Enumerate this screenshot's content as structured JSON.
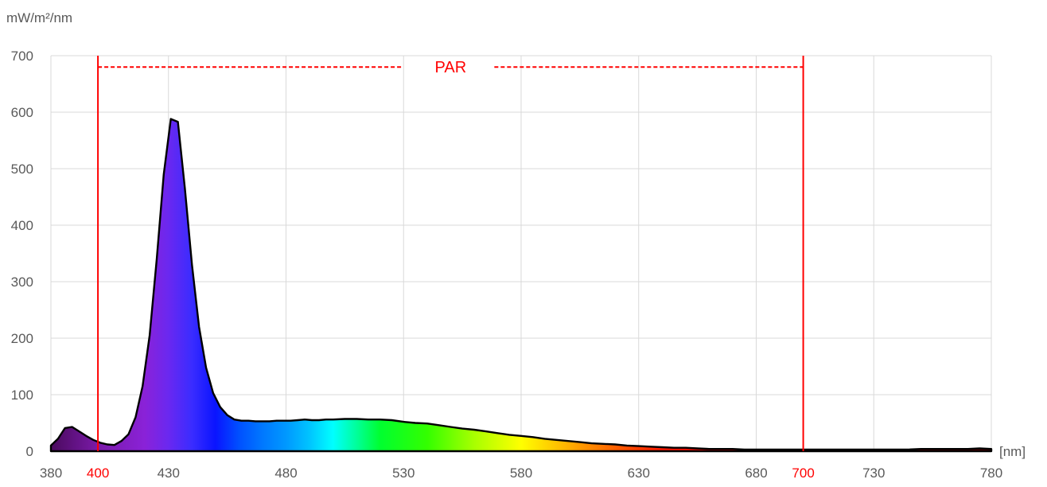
{
  "chart_data": {
    "type": "area",
    "ylabel": "mW/m²/nm",
    "xlabel": "[nm]",
    "xlim": [
      380,
      780
    ],
    "ylim": [
      0,
      700
    ],
    "y_ticks": [
      0,
      100,
      200,
      300,
      400,
      500,
      600,
      700
    ],
    "x_ticks": [
      380,
      400,
      430,
      480,
      530,
      580,
      630,
      680,
      700,
      730,
      780
    ],
    "highlight_ticks": [
      400,
      700
    ],
    "grid": true,
    "fill": "visible-spectrum-gradient",
    "series": [
      {
        "x": [
          380,
          383,
          386,
          389,
          392,
          395,
          398,
          401,
          404,
          407,
          410,
          413,
          416,
          419,
          422,
          425,
          428,
          431,
          434,
          437,
          440,
          443,
          446,
          449,
          452,
          455,
          458,
          461,
          464,
          467,
          470,
          473,
          476,
          479,
          482,
          485,
          488,
          491,
          494,
          497,
          500,
          505,
          510,
          515,
          520,
          525,
          530,
          535,
          540,
          545,
          550,
          555,
          560,
          565,
          570,
          575,
          580,
          585,
          590,
          595,
          600,
          605,
          610,
          615,
          620,
          625,
          630,
          635,
          640,
          645,
          650,
          655,
          660,
          665,
          670,
          675,
          680,
          685,
          690,
          695,
          700,
          705,
          710,
          715,
          720,
          725,
          730,
          735,
          740,
          745,
          750,
          755,
          760,
          765,
          770,
          775,
          780
        ],
        "y": [
          10,
          22,
          41,
          43,
          35,
          27,
          20,
          15,
          12,
          11,
          18,
          30,
          60,
          115,
          205,
          340,
          490,
          588,
          583,
          465,
          330,
          220,
          148,
          103,
          78,
          64,
          56,
          54,
          54,
          53,
          53,
          53,
          54,
          54,
          54,
          55,
          56,
          55,
          55,
          56,
          56,
          57,
          57,
          56,
          56,
          55,
          52,
          50,
          49,
          46,
          43,
          40,
          38,
          35,
          32,
          29,
          27,
          25,
          22,
          20,
          18,
          16,
          14,
          13,
          12,
          10,
          9,
          8,
          7,
          6,
          6,
          5,
          4,
          4,
          4,
          3,
          3,
          3,
          3,
          3,
          3,
          3,
          3,
          3,
          3,
          3,
          3,
          3,
          3,
          3,
          4,
          4,
          4,
          4,
          4,
          5,
          4
        ]
      }
    ],
    "annotations": [
      {
        "text": "PAR",
        "from": 400,
        "to": 700,
        "value": 680,
        "color": "#ff0000"
      }
    ],
    "colors": {
      "axis_text": "#595959",
      "grid": "#d9d9d9",
      "par": "#ff0000",
      "outline": "#000000"
    }
  }
}
